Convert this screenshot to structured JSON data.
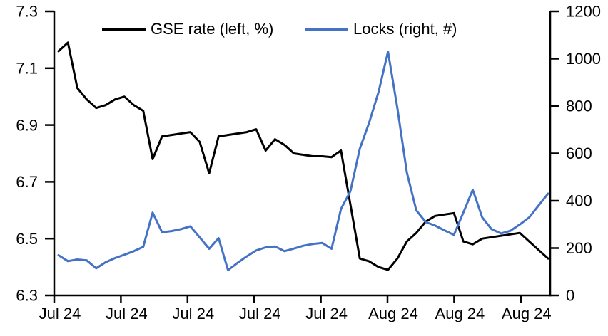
{
  "chart_data": {
    "type": "line",
    "title": "",
    "grid": false,
    "legend_position": "top-center",
    "x_axis": {
      "tick_labels": [
        "Jul 24",
        "Jul 24",
        "Jul 24",
        "Jul 24",
        "Jul 24",
        "Aug 24",
        "Aug 24",
        "Aug 24"
      ]
    },
    "left_axis": {
      "range": [
        6.3,
        7.3
      ],
      "tick_labels": [
        "7.3",
        "7.1",
        "6.9",
        "6.7",
        "6.5",
        "6.3"
      ],
      "tick_values": [
        7.3,
        7.1,
        6.9,
        6.7,
        6.5,
        6.3
      ]
    },
    "right_axis": {
      "range": [
        0,
        1200
      ],
      "tick_labels": [
        "1200",
        "1000",
        "800",
        "600",
        "400",
        "200",
        "0"
      ],
      "tick_values": [
        1200,
        1000,
        800,
        600,
        400,
        200,
        0
      ]
    },
    "series": [
      {
        "key": "gse-rate",
        "name": "GSE rate (left, %)",
        "axis": "left",
        "color": "#000000",
        "values": [
          7.16,
          7.19,
          7.03,
          6.99,
          6.96,
          6.97,
          6.99,
          7.0,
          6.97,
          6.95,
          6.78,
          6.86,
          6.865,
          6.87,
          6.875,
          6.84,
          6.73,
          6.86,
          6.865,
          6.87,
          6.875,
          6.885,
          6.81,
          6.85,
          6.83,
          6.8,
          6.795,
          6.79,
          6.79,
          6.787,
          6.81,
          6.62,
          6.43,
          6.42,
          6.4,
          6.39,
          6.43,
          6.49,
          6.52,
          6.56,
          6.58,
          6.585,
          6.59,
          6.49,
          6.48,
          6.5,
          6.505,
          6.51,
          6.515,
          6.52,
          6.49,
          6.46,
          6.43
        ]
      },
      {
        "key": "locks",
        "name": "Locks (right, #)",
        "axis": "right",
        "color": "#4472C4",
        "values": [
          170,
          145,
          152,
          148,
          115,
          140,
          158,
          172,
          187,
          205,
          350,
          267,
          272,
          280,
          292,
          245,
          197,
          242,
          107,
          137,
          165,
          190,
          203,
          207,
          187,
          198,
          210,
          217,
          222,
          197,
          365,
          440,
          620,
          730,
          860,
          1030,
          790,
          520,
          360,
          310,
          295,
          275,
          256,
          350,
          446,
          330,
          280,
          262,
          273,
          300,
          330,
          380,
          430
        ]
      }
    ]
  }
}
